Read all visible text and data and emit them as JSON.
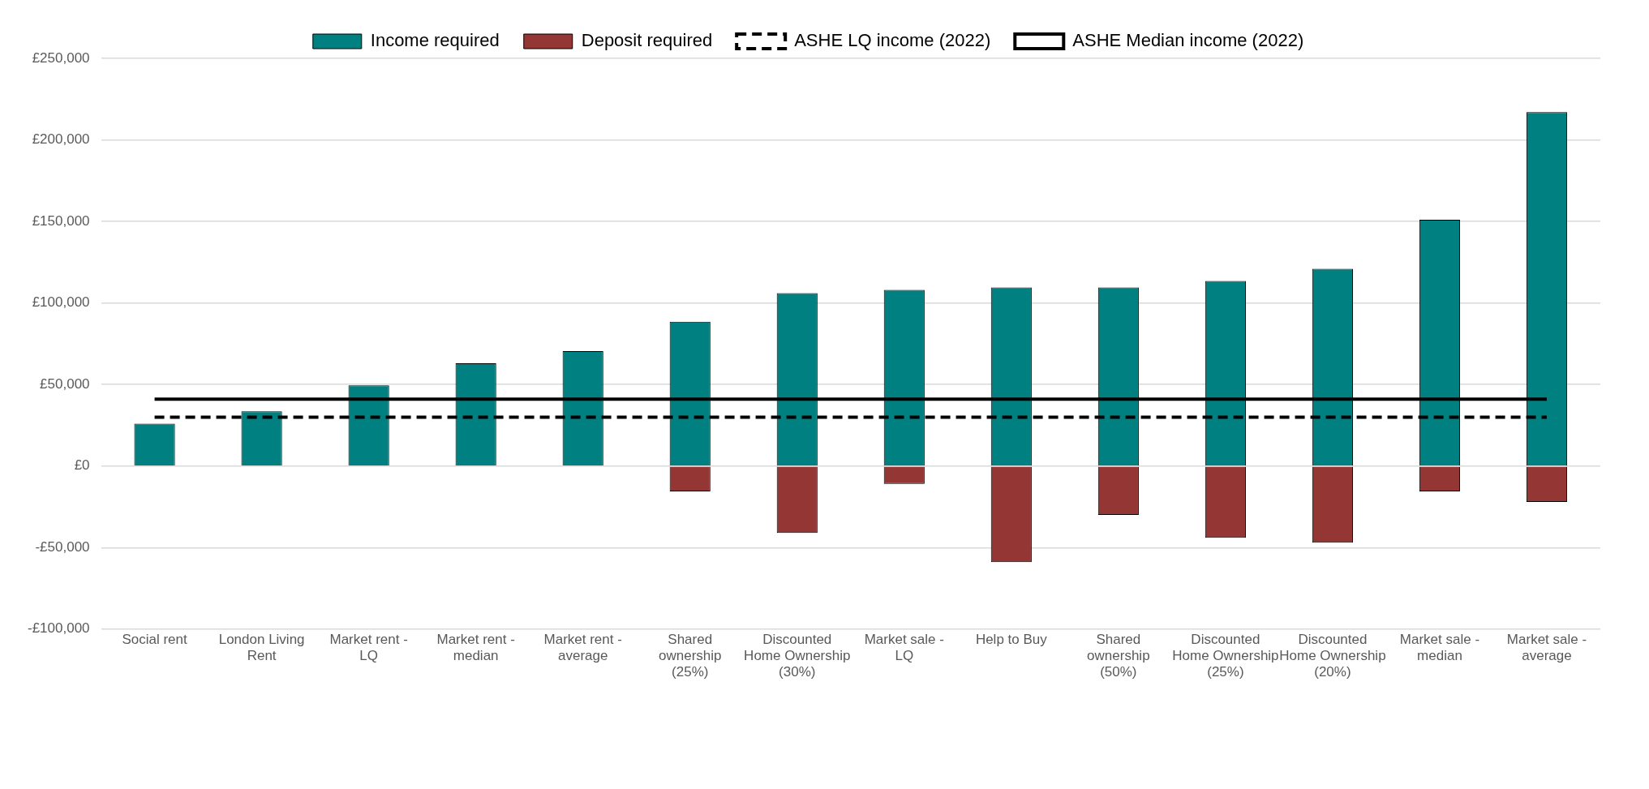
{
  "chart_data": {
    "type": "bar",
    "stacked": true,
    "grid": "y",
    "legend": "top",
    "marker": "none",
    "categories": [
      "Social rent",
      "London Living Rent",
      "Market rent - LQ",
      "Market rent - median",
      "Market rent - average",
      "Shared ownership (25%)",
      "Discounted Home Ownership (30%)",
      "Market sale - LQ",
      "Help to Buy",
      "Shared ownership (50%)",
      "Discounted Home Ownership (25%)",
      "Discounted Home Ownership (20%)",
      "Market sale - median",
      "Market sale - average"
    ],
    "series": [
      {
        "name": "Income required",
        "color": "#008080",
        "values": [
          26000,
          33500,
          49500,
          63000,
          70500,
          88500,
          106000,
          108000,
          109500,
          109500,
          113500,
          121000,
          151000,
          217000
        ]
      },
      {
        "name": "Deposit required",
        "color": "#943634",
        "values": [
          null,
          null,
          null,
          null,
          null,
          -15500,
          -41000,
          -11000,
          -59000,
          -30000,
          -44000,
          -47000,
          -15500,
          -22000
        ]
      },
      {
        "name": "ASHE LQ income (2022)",
        "type": "line",
        "line_style": "dashed",
        "color": "#000000",
        "values": [
          30000,
          30000,
          30000,
          30000,
          30000,
          30000,
          30000,
          30000,
          30000,
          30000,
          30000,
          30000,
          30000,
          30000
        ]
      },
      {
        "name": "ASHE Median income (2022)",
        "type": "line",
        "line_style": "solid",
        "color": "#000000",
        "values": [
          41000,
          41000,
          41000,
          41000,
          41000,
          41000,
          41000,
          41000,
          41000,
          41000,
          41000,
          41000,
          41000,
          41000
        ]
      }
    ],
    "ylim": [
      -100000,
      250000
    ],
    "yticks": [
      {
        "value": -100000,
        "label": "-£100,000"
      },
      {
        "value": -50000,
        "label": "-£50,000"
      },
      {
        "value": 0,
        "label": "£0"
      },
      {
        "value": 50000,
        "label": "£50,000"
      },
      {
        "value": 100000,
        "label": "£100,000"
      },
      {
        "value": 150000,
        "label": "£150,000"
      },
      {
        "value": 200000,
        "label": "£200,000"
      },
      {
        "value": 250000,
        "label": "£250,000"
      }
    ]
  }
}
